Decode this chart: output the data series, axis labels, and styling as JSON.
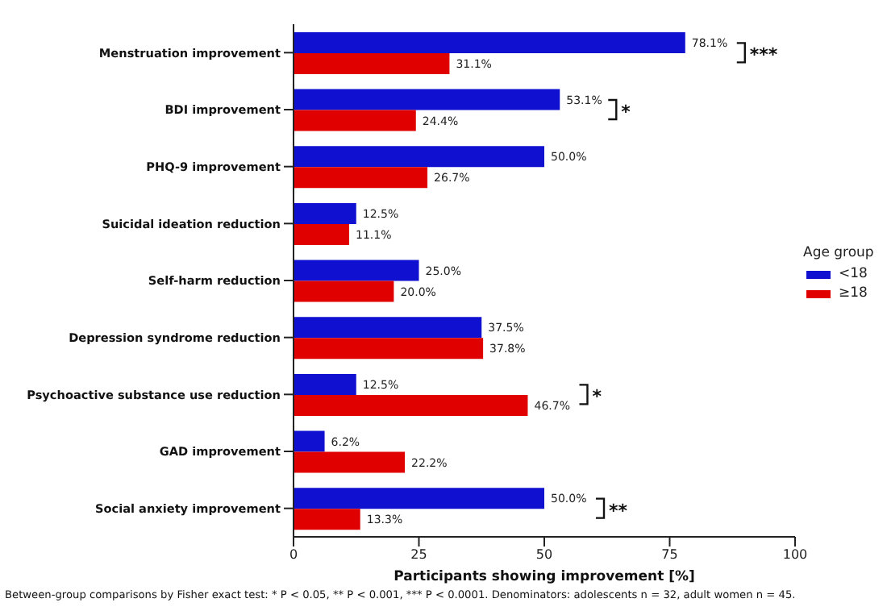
{
  "chart_data": {
    "type": "bar",
    "orientation": "horizontal",
    "categories": [
      "Menstruation improvement",
      "BDI improvement",
      "PHQ-9 improvement",
      "Suicidal ideation reduction",
      "Self-harm reduction",
      "Depression syndrome reduction",
      "Psychoactive substance use reduction",
      "GAD improvement",
      "Social anxiety improvement"
    ],
    "series": [
      {
        "name": "<18",
        "color": "#1010d0",
        "values": [
          78.1,
          53.1,
          50.0,
          12.5,
          25.0,
          37.5,
          12.5,
          6.2,
          50.0
        ],
        "value_labels": [
          "78.1%",
          "53.1%",
          "50.0%",
          "12.5%",
          "25.0%",
          "37.5%",
          "12.5%",
          "6.2%",
          "50.0%"
        ]
      },
      {
        "name": "≥18",
        "color": "#e00000",
        "values": [
          31.1,
          24.4,
          26.7,
          11.1,
          20.0,
          37.8,
          46.7,
          22.2,
          13.3
        ],
        "value_labels": [
          "31.1%",
          "24.4%",
          "26.7%",
          "11.1%",
          "20.0%",
          "37.8%",
          "46.7%",
          "22.2%",
          "13.3%"
        ]
      }
    ],
    "xlabel": "Participants showing improvement [%]",
    "xlim": [
      0,
      100
    ],
    "xticks": [
      0,
      25,
      50,
      75,
      100
    ],
    "legend": "right",
    "legend_title": "Age group",
    "grid": false,
    "annotations": [
      "***",
      "*",
      "*",
      "**",
      "Between-group comparisons by Fisher exact test: * P < 0.05, ** P < 0.001, *** P < 0.0001. Denominators: adolescents n = 32, adult women n = 45."
    ]
  }
}
